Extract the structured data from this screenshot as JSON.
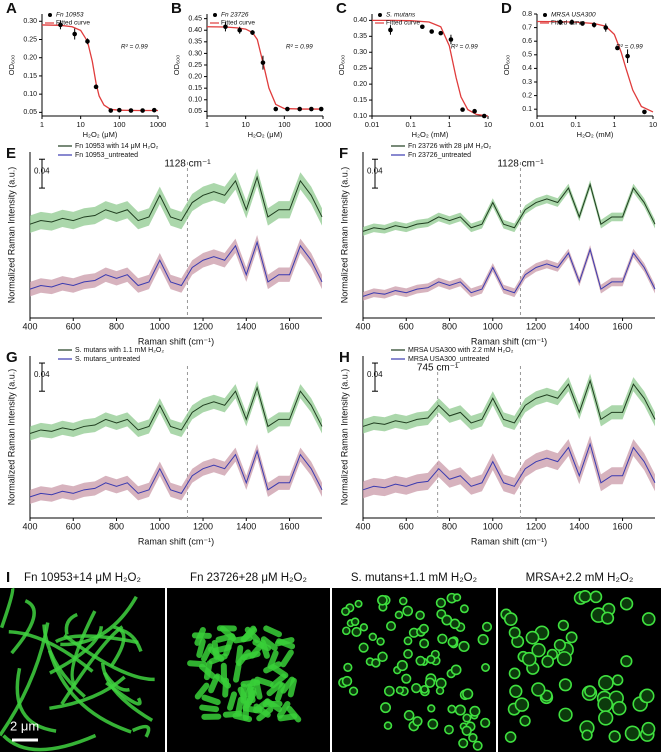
{
  "chart_data": [
    {
      "type": "scatter",
      "label": "A",
      "xlog": true,
      "xlabel": "H₂O₂ (μM)",
      "ylabel": "OD₆₀₀",
      "annotation": "R² = 0.99",
      "xlim": [
        1,
        1000
      ],
      "xticks": [
        1,
        10,
        100,
        1000
      ],
      "ylim": [
        0.04,
        0.32
      ],
      "yticks": [
        0.05,
        {
          "value": 0.1,
          "label": "0.10"
        },
        0.15,
        {
          "value": 0.2,
          "label": "0.20"
        },
        0.25,
        {
          "value": 0.3,
          "label": "0.30"
        }
      ],
      "series": [
        {
          "name": "Fn 10953",
          "color": "#000000",
          "x": [
            3,
            7,
            15,
            25,
            60,
            100,
            200,
            400,
            800
          ],
          "values": [
            0.29,
            0.265,
            0.245,
            0.12,
            0.055,
            0.056,
            0.055,
            0.055,
            0.056
          ],
          "errors": [
            0.012,
            0.015,
            0.008,
            0.005,
            0.002,
            0.002,
            0.002,
            0.002,
            0.002
          ]
        },
        {
          "name": "Fitted curve",
          "color": "#e03c3c",
          "x": [
            1,
            3,
            6,
            10,
            15,
            20,
            25,
            30,
            40,
            60,
            100,
            300,
            1000
          ],
          "values": [
            0.29,
            0.289,
            0.285,
            0.275,
            0.245,
            0.19,
            0.13,
            0.095,
            0.07,
            0.058,
            0.056,
            0.055,
            0.055
          ]
        }
      ]
    },
    {
      "type": "scatter",
      "label": "B",
      "xlog": true,
      "xlabel": "H₂O₂ (μM)",
      "ylabel": "OD₆₀₀",
      "annotation": "R² = 0.99",
      "xlim": [
        1,
        1000
      ],
      "xticks": [
        1,
        10,
        100,
        1000
      ],
      "ylim": [
        0.03,
        0.47
      ],
      "yticks": [
        0.05,
        {
          "value": 0.1,
          "label": "0.10"
        },
        0.15,
        {
          "value": 0.2,
          "label": "0.20"
        },
        0.25,
        {
          "value": 0.3,
          "label": "0.30"
        },
        0.35,
        {
          "value": 0.4,
          "label": "0.40"
        },
        0.45
      ],
      "series": [
        {
          "name": "Fn 23726",
          "color": "#000000",
          "x": [
            3,
            7,
            15,
            28,
            60,
            120,
            250,
            500,
            900
          ],
          "values": [
            0.415,
            0.4,
            0.39,
            0.26,
            0.06,
            0.06,
            0.06,
            0.06,
            0.06
          ],
          "errors": [
            0.02,
            0.015,
            0.01,
            0.03,
            0.003,
            0.003,
            0.003,
            0.003,
            0.003
          ]
        },
        {
          "name": "Fitted curve",
          "color": "#e03c3c",
          "x": [
            1,
            3,
            6,
            10,
            15,
            20,
            30,
            40,
            60,
            100,
            300,
            1000
          ],
          "values": [
            0.415,
            0.414,
            0.41,
            0.405,
            0.39,
            0.36,
            0.24,
            0.15,
            0.08,
            0.062,
            0.06,
            0.06
          ]
        }
      ]
    },
    {
      "type": "scatter",
      "label": "C",
      "xlog": true,
      "xlabel": "H₂O₂ (mM)",
      "ylabel": "OD₆₀₀",
      "annotation": "R² = 0.99",
      "xlim": [
        0.01,
        10
      ],
      "xticks": [
        0.01,
        0.1,
        1,
        10
      ],
      "ylim": [
        0.1,
        0.42
      ],
      "yticks": [
        {
          "value": 0.1,
          "label": "0.10"
        },
        0.15,
        {
          "value": 0.2,
          "label": "0.20"
        },
        0.25,
        {
          "value": 0.3,
          "label": "0.30"
        },
        0.35,
        {
          "value": 0.4,
          "label": "0.40"
        }
      ],
      "series": [
        {
          "name": "S. mutans",
          "color": "#000000",
          "x": [
            0.03,
            0.2,
            0.35,
            0.6,
            1.1,
            2.2,
            4.5,
            8
          ],
          "values": [
            0.37,
            0.38,
            0.365,
            0.36,
            0.34,
            0.12,
            0.115,
            0.1
          ],
          "errors": [
            0.015,
            0.005,
            0.005,
            0.005,
            0.015,
            0.005,
            0.003,
            0.003
          ]
        },
        {
          "name": "Fitted curve",
          "color": "#e03c3c",
          "x": [
            0.01,
            0.03,
            0.1,
            0.3,
            0.6,
            1,
            1.5,
            2,
            3,
            5,
            10
          ],
          "values": [
            0.4,
            0.4,
            0.399,
            0.395,
            0.38,
            0.32,
            0.22,
            0.16,
            0.12,
            0.105,
            0.1
          ]
        }
      ]
    },
    {
      "type": "scatter",
      "label": "D",
      "xlog": true,
      "xlabel": "H₂O₂ (mM)",
      "ylabel": "OD₆₀₀",
      "annotation": "R² = 0.99",
      "xlim": [
        0.01,
        10
      ],
      "xticks": [
        0.01,
        0.1,
        1,
        10
      ],
      "ylim": [
        0.05,
        0.8
      ],
      "yticks": [
        0.1,
        0.2,
        0.3,
        0.4,
        0.5,
        0.6,
        0.7,
        0.8
      ],
      "series": [
        {
          "name": "MRSA USA300",
          "color": "#000000",
          "x": [
            0.04,
            0.08,
            0.15,
            0.3,
            0.6,
            1.2,
            2.2,
            6
          ],
          "values": [
            0.74,
            0.74,
            0.73,
            0.72,
            0.7,
            0.55,
            0.49,
            0.08
          ],
          "errors": [
            0.02,
            0.02,
            0.01,
            0.02,
            0.03,
            0.01,
            0.05,
            0.01
          ]
        },
        {
          "name": "Fitted curve",
          "color": "#e03c3c",
          "x": [
            0.01,
            0.03,
            0.1,
            0.3,
            0.6,
            1,
            1.5,
            2,
            3,
            5,
            10
          ],
          "values": [
            0.745,
            0.744,
            0.74,
            0.73,
            0.71,
            0.65,
            0.52,
            0.4,
            0.24,
            0.12,
            0.08
          ]
        }
      ]
    },
    {
      "type": "line",
      "label": "E",
      "xlabel": "Raman shift (cm⁻¹)",
      "ylabel": "Normalized Raman Intensity (a.u.)",
      "scale_bar": 0.04,
      "xlim": [
        400,
        1750
      ],
      "xticks": [
        400,
        600,
        800,
        1000,
        1200,
        1400,
        1600
      ],
      "ylim": [
        0.04,
        0.27
      ],
      "ref_lines": [
        1128
      ],
      "annotations": [
        {
          "text": "1128 cm⁻¹",
          "x": 1128
        }
      ],
      "x": [
        400,
        450,
        500,
        550,
        600,
        650,
        700,
        750,
        800,
        850,
        900,
        950,
        1000,
        1050,
        1100,
        1150,
        1200,
        1250,
        1300,
        1350,
        1400,
        1450,
        1500,
        1550,
        1600,
        1650,
        1700,
        1750
      ],
      "series": [
        {
          "name": "Fn 10953 with 14 μM H₂O₂",
          "color": "#1f3d1f",
          "band_color": "#8fc98f",
          "spread": 0.012,
          "values": [
            0.17,
            0.175,
            0.173,
            0.178,
            0.175,
            0.18,
            0.182,
            0.19,
            0.185,
            0.19,
            0.175,
            0.18,
            0.21,
            0.18,
            0.175,
            0.2,
            0.21,
            0.215,
            0.21,
            0.23,
            0.19,
            0.235,
            0.18,
            0.19,
            0.19,
            0.23,
            0.21,
            0.18
          ]
        },
        {
          "name": "Fn 10953_untreated",
          "color": "#3b3bb0",
          "band_color": "#c99aa8",
          "spread": 0.01,
          "values": [
            0.08,
            0.085,
            0.083,
            0.088,
            0.085,
            0.09,
            0.092,
            0.1,
            0.095,
            0.1,
            0.085,
            0.09,
            0.12,
            0.09,
            0.085,
            0.11,
            0.12,
            0.125,
            0.12,
            0.14,
            0.1,
            0.145,
            0.09,
            0.1,
            0.1,
            0.14,
            0.12,
            0.09
          ]
        }
      ]
    },
    {
      "type": "line",
      "label": "F",
      "xlabel": "Raman shift (cm⁻¹)",
      "ylabel": "Normalized Raman Intensity (a.u.)",
      "scale_bar": 0.04,
      "xlim": [
        400,
        1750
      ],
      "xticks": [
        400,
        600,
        800,
        1000,
        1200,
        1400,
        1600
      ],
      "ylim": [
        0.04,
        0.27
      ],
      "ref_lines": [
        1128
      ],
      "annotations": [
        {
          "text": "1128 cm⁻¹",
          "x": 1128
        }
      ],
      "x": [
        400,
        450,
        500,
        550,
        600,
        650,
        700,
        750,
        800,
        850,
        900,
        950,
        1000,
        1050,
        1100,
        1150,
        1200,
        1250,
        1300,
        1350,
        1400,
        1450,
        1500,
        1550,
        1600,
        1650,
        1700,
        1750
      ],
      "series": [
        {
          "name": "Fn 23726 with 28 μM H₂O₂",
          "color": "#1f3d1f",
          "band_color": "#8fc98f",
          "spread": 0.006,
          "values": [
            0.16,
            0.165,
            0.163,
            0.168,
            0.165,
            0.17,
            0.172,
            0.18,
            0.175,
            0.18,
            0.165,
            0.17,
            0.2,
            0.17,
            0.165,
            0.19,
            0.2,
            0.205,
            0.2,
            0.22,
            0.18,
            0.225,
            0.17,
            0.18,
            0.18,
            0.22,
            0.2,
            0.17
          ]
        },
        {
          "name": "Fn 23726_untreated",
          "color": "#3b3bb0",
          "band_color": "#c99aa8",
          "spread": 0.006,
          "values": [
            0.07,
            0.075,
            0.073,
            0.078,
            0.075,
            0.08,
            0.082,
            0.09,
            0.085,
            0.09,
            0.075,
            0.08,
            0.11,
            0.08,
            0.075,
            0.1,
            0.11,
            0.115,
            0.11,
            0.13,
            0.09,
            0.135,
            0.08,
            0.09,
            0.09,
            0.13,
            0.11,
            0.08
          ]
        }
      ]
    },
    {
      "type": "line",
      "label": "G",
      "xlabel": "Raman shift (cm⁻¹)",
      "ylabel": "Normalized Raman Intensity (a.u.)",
      "scale_bar": 0.04,
      "xlim": [
        400,
        1750
      ],
      "xticks": [
        400,
        600,
        800,
        1000,
        1200,
        1400,
        1600
      ],
      "ylim": [
        0.03,
        0.26
      ],
      "ref_lines": [
        1128
      ],
      "x": [
        400,
        450,
        500,
        550,
        600,
        650,
        700,
        750,
        800,
        850,
        900,
        950,
        1000,
        1050,
        1100,
        1150,
        1200,
        1250,
        1300,
        1350,
        1400,
        1450,
        1500,
        1550,
        1600,
        1650,
        1700,
        1750
      ],
      "series": [
        {
          "name": "S. mutans with 1.1 mM H₂O₂",
          "color": "#1f3d1f",
          "band_color": "#8fc98f",
          "spread": 0.01,
          "values": [
            0.15,
            0.155,
            0.153,
            0.158,
            0.155,
            0.16,
            0.162,
            0.17,
            0.165,
            0.17,
            0.155,
            0.16,
            0.19,
            0.16,
            0.155,
            0.18,
            0.19,
            0.195,
            0.19,
            0.21,
            0.17,
            0.215,
            0.16,
            0.17,
            0.17,
            0.21,
            0.19,
            0.16
          ]
        },
        {
          "name": "S. mutans_untreated",
          "color": "#3b3bb0",
          "band_color": "#c99aa8",
          "spread": 0.01,
          "values": [
            0.06,
            0.065,
            0.063,
            0.068,
            0.065,
            0.07,
            0.072,
            0.08,
            0.075,
            0.08,
            0.065,
            0.07,
            0.1,
            0.07,
            0.065,
            0.09,
            0.1,
            0.105,
            0.1,
            0.12,
            0.08,
            0.125,
            0.07,
            0.08,
            0.08,
            0.12,
            0.1,
            0.07
          ]
        }
      ]
    },
    {
      "type": "line",
      "label": "H",
      "xlabel": "Raman shift (cm⁻¹)",
      "ylabel": "Normalized Raman Intensity (a.u.)",
      "scale_bar": 0.04,
      "xlim": [
        400,
        1750
      ],
      "xticks": [
        400,
        600,
        800,
        1000,
        1200,
        1400,
        1600
      ],
      "ylim": [
        0.04,
        0.27
      ],
      "ref_lines": [
        745,
        1128
      ],
      "annotations": [
        {
          "text": "745 cm⁻¹",
          "x": 745
        }
      ],
      "x": [
        400,
        450,
        500,
        550,
        600,
        650,
        700,
        750,
        800,
        850,
        900,
        950,
        1000,
        1050,
        1100,
        1150,
        1200,
        1250,
        1300,
        1350,
        1400,
        1450,
        1500,
        1550,
        1600,
        1650,
        1700,
        1750
      ],
      "series": [
        {
          "name": "MRSA USA300 with 2.2 mM H₂O₂",
          "color": "#1f3d1f",
          "band_color": "#8fc98f",
          "spread": 0.01,
          "values": [
            0.17,
            0.175,
            0.173,
            0.178,
            0.175,
            0.18,
            0.182,
            0.2,
            0.185,
            0.19,
            0.175,
            0.18,
            0.21,
            0.18,
            0.175,
            0.2,
            0.21,
            0.215,
            0.21,
            0.23,
            0.19,
            0.235,
            0.18,
            0.19,
            0.19,
            0.23,
            0.21,
            0.18
          ]
        },
        {
          "name": "MRSA USA300_untreated",
          "color": "#3b3bb0",
          "band_color": "#c99aa8",
          "spread": 0.012,
          "values": [
            0.08,
            0.085,
            0.083,
            0.088,
            0.085,
            0.09,
            0.092,
            0.11,
            0.095,
            0.1,
            0.085,
            0.09,
            0.12,
            0.09,
            0.085,
            0.11,
            0.12,
            0.125,
            0.12,
            0.14,
            0.1,
            0.145,
            0.09,
            0.1,
            0.1,
            0.14,
            0.12,
            0.09
          ]
        }
      ]
    }
  ],
  "images": {
    "label": "I",
    "captions": [
      "Fn 10953+14 μM H₂O₂",
      "Fn 23726+28 μM H₂O₂",
      "S. mutans+1.1 mM H₂O₂",
      "MRSA+2.2 mM H₂O₂"
    ],
    "scale_bar": "2 μm"
  }
}
